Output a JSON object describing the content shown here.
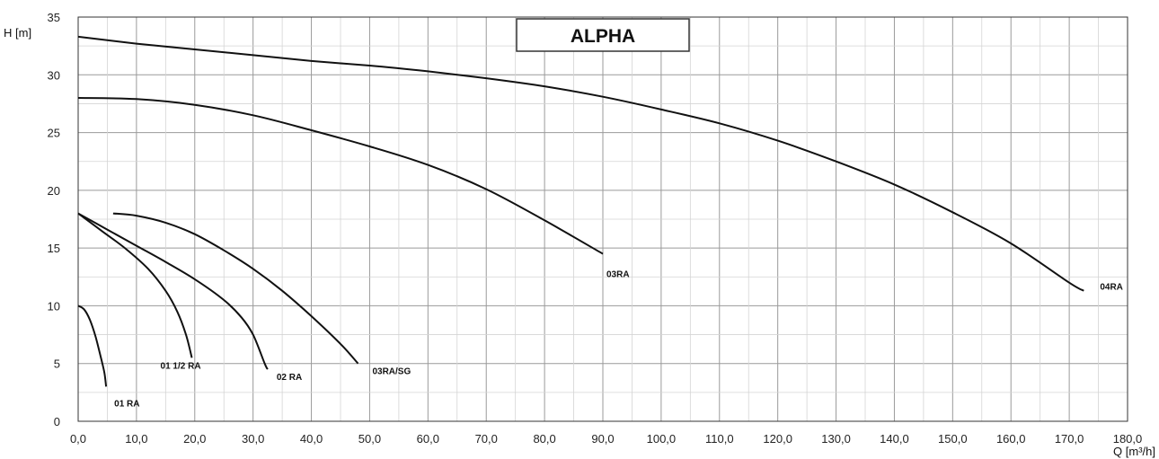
{
  "chart_data": {
    "type": "line",
    "title": "ALPHA",
    "xlabel": "Q [m³/h]",
    "ylabel": "H [m]",
    "xlim": [
      0,
      180
    ],
    "ylim": [
      0,
      35
    ],
    "grid": true,
    "x_ticks": [
      "0,0",
      "10,0",
      "20,0",
      "30,0",
      "40,0",
      "50,0",
      "60,0",
      "70,0",
      "80,0",
      "90,0",
      "100,0",
      "110,0",
      "120,0",
      "130,0",
      "140,0",
      "150,0",
      "160,0",
      "170,0",
      "180,0"
    ],
    "y_ticks": [
      "0",
      "5",
      "10",
      "15",
      "20",
      "25",
      "30",
      "35"
    ],
    "series": [
      {
        "name": "01 RA",
        "points": [
          [
            0,
            10
          ],
          [
            1,
            9.7
          ],
          [
            2,
            8.8
          ],
          [
            3,
            7.3
          ],
          [
            4,
            5.3
          ],
          [
            4.5,
            4.2
          ],
          [
            4.8,
            3
          ]
        ]
      },
      {
        "name": "01 1/2  RA",
        "points": [
          [
            0,
            18
          ],
          [
            4,
            16.5
          ],
          [
            8,
            15
          ],
          [
            12,
            13.2
          ],
          [
            15,
            11.3
          ],
          [
            17,
            9.5
          ],
          [
            18.5,
            7.5
          ],
          [
            19.5,
            5.5
          ]
        ]
      },
      {
        "name": "02 RA",
        "points": [
          [
            0,
            18
          ],
          [
            5,
            16.6
          ],
          [
            10,
            15.2
          ],
          [
            15,
            13.8
          ],
          [
            20,
            12.3
          ],
          [
            25,
            10.5
          ],
          [
            28,
            9
          ],
          [
            30,
            7.5
          ],
          [
            32,
            5
          ],
          [
            32.5,
            4.5
          ]
        ]
      },
      {
        "name": "03RA/SG",
        "points": [
          [
            6,
            18
          ],
          [
            10,
            17.8
          ],
          [
            15,
            17.2
          ],
          [
            20,
            16.2
          ],
          [
            25,
            14.8
          ],
          [
            30,
            13.2
          ],
          [
            35,
            11.3
          ],
          [
            40,
            9.1
          ],
          [
            45,
            6.7
          ],
          [
            48,
            5
          ]
        ]
      },
      {
        "name": "03RA",
        "points": [
          [
            0,
            28
          ],
          [
            10,
            27.9
          ],
          [
            20,
            27.4
          ],
          [
            30,
            26.5
          ],
          [
            40,
            25.2
          ],
          [
            50,
            23.8
          ],
          [
            60,
            22.2
          ],
          [
            70,
            20.1
          ],
          [
            80,
            17.4
          ],
          [
            90,
            14.5
          ]
        ]
      },
      {
        "name": "04RA",
        "points": [
          [
            0,
            33.3
          ],
          [
            10,
            32.7
          ],
          [
            20,
            32.2
          ],
          [
            30,
            31.7
          ],
          [
            40,
            31.2
          ],
          [
            50,
            30.8
          ],
          [
            60,
            30.3
          ],
          [
            70,
            29.7
          ],
          [
            80,
            29
          ],
          [
            90,
            28.1
          ],
          [
            100,
            27
          ],
          [
            110,
            25.8
          ],
          [
            120,
            24.3
          ],
          [
            130,
            22.5
          ],
          [
            140,
            20.5
          ],
          [
            150,
            18.1
          ],
          [
            160,
            15.4
          ],
          [
            170,
            12
          ],
          [
            172.5,
            11.3
          ]
        ]
      }
    ]
  }
}
